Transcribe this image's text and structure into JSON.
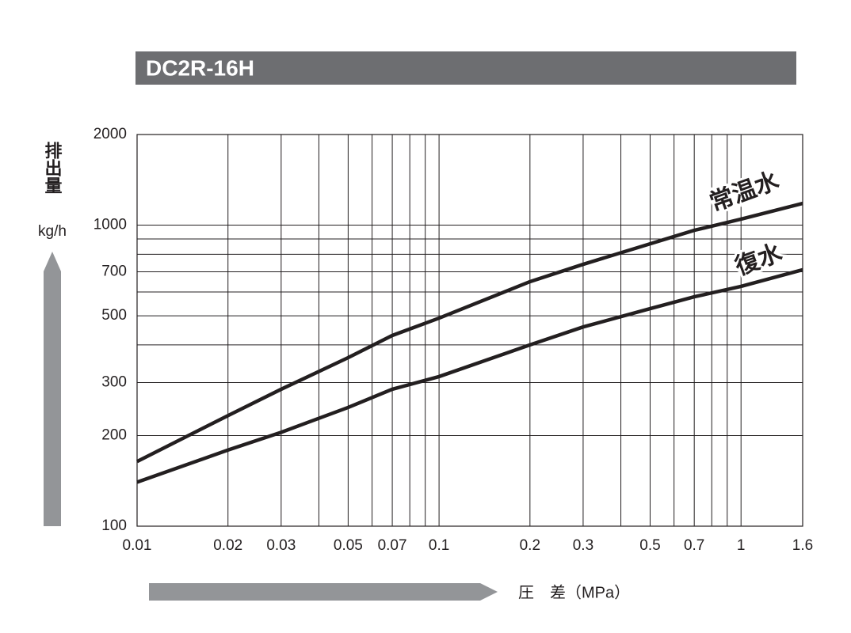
{
  "chart_data": {
    "type": "line",
    "title": "DC2R-16H",
    "y_label": "排出量",
    "y_unit": "kg/h",
    "x_label": "圧　差（MPa）",
    "log_x": true,
    "log_y": true,
    "xlim": [
      0.01,
      1.6
    ],
    "ylim": [
      100,
      2000
    ],
    "xticks": [
      0.01,
      0.02,
      0.03,
      0.05,
      0.07,
      0.1,
      0.2,
      0.3,
      0.5,
      0.7,
      1,
      1.6
    ],
    "yticks": [
      100,
      200,
      300,
      500,
      700,
      1000,
      2000
    ],
    "xgrid": [
      0.02,
      0.03,
      0.04,
      0.05,
      0.06,
      0.07,
      0.08,
      0.09,
      0.1,
      0.2,
      0.3,
      0.4,
      0.5,
      0.6,
      0.7,
      0.8,
      0.9,
      1
    ],
    "ygrid": [
      200,
      300,
      400,
      500,
      600,
      700,
      800,
      900,
      1000
    ],
    "x": [
      0.01,
      0.02,
      0.03,
      0.05,
      0.07,
      0.1,
      0.2,
      0.3,
      0.5,
      0.7,
      1,
      1.6
    ],
    "series": [
      {
        "name": "常温水",
        "color": "#231f20",
        "values": [
          164,
          233,
          285,
          363,
          430,
          491,
          649,
          741,
          867,
          961,
          1047,
          1181
        ]
      },
      {
        "name": "復水",
        "color": "#231f20",
        "values": [
          140,
          179,
          205,
          248,
          285,
          314,
          400,
          459,
          528,
          578,
          626,
          711
        ]
      }
    ]
  }
}
